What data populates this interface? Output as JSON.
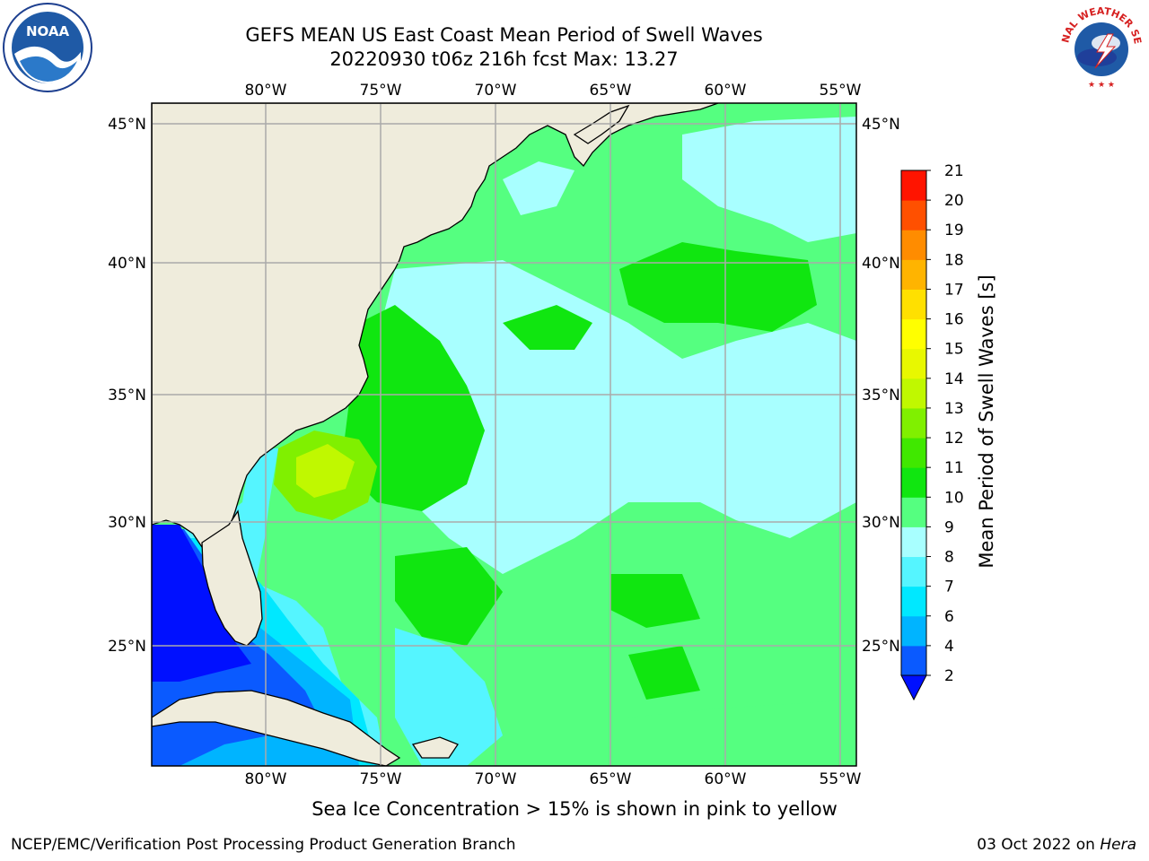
{
  "title": {
    "line1": "GEFS MEAN US East Coast Mean Period of Swell Waves",
    "line2": "20220930 t06z 216h fcst   Max: 13.27"
  },
  "logos": {
    "noaa_text": "NOAA",
    "nws_text": "NATIONAL WEATHER SERVICE"
  },
  "map": {
    "lon_labels": [
      "80°W",
      "75°W",
      "70°W",
      "65°W",
      "60°W",
      "55°W"
    ],
    "lat_labels": [
      "45°N",
      "40°N",
      "35°N",
      "30°N",
      "25°N"
    ],
    "lon_ticks": [
      -80,
      -75,
      -70,
      -65,
      -60,
      -55
    ],
    "lat_ticks": [
      45,
      40,
      35,
      30,
      25
    ],
    "extent": {
      "lon_min": -85,
      "lon_max": -54.3,
      "lat_min": 20.5,
      "lat_max": 46
    }
  },
  "colorbar": {
    "title": "Mean Period of Swell Waves [s]",
    "levels": [
      "2",
      "4",
      "6",
      "7",
      "8",
      "9",
      "10",
      "11",
      "12",
      "13",
      "14",
      "15",
      "16",
      "17",
      "18",
      "19",
      "20",
      "21"
    ],
    "colors": [
      "#0a5aff",
      "#00b4ff",
      "#00e8ff",
      "#55f5ff",
      "#a8ffff",
      "#55ff80",
      "#10e610",
      "#40e800",
      "#80f000",
      "#c0f800",
      "#e8f800",
      "#ffff00",
      "#ffe000",
      "#ffb400",
      "#ff8c00",
      "#ff5000",
      "#ff1400"
    ],
    "under_color": "#0010ff"
  },
  "colors": {
    "land": "#efecdc",
    "grid": "#aaaaaa",
    "ocean_base": "#55ff80"
  },
  "note": "Sea Ice Concentration > 15% is shown in pink to yellow",
  "footer": {
    "left": "NCEP/EMC/Verification Post Processing Product Generation Branch",
    "right_date": "03 Oct 2022 on",
    "right_host": "Hera"
  }
}
